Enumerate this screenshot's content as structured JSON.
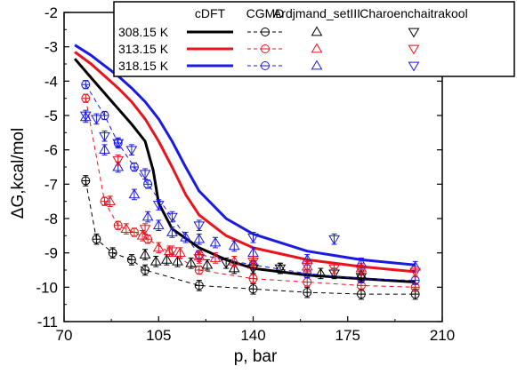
{
  "chart_data": {
    "type": "line",
    "xlabel": "p, bar",
    "ylabel": "ΔG,kcal/mol",
    "xlim": [
      70,
      210
    ],
    "ylim": [
      -11,
      -2
    ],
    "xticks": [
      70,
      105,
      140,
      175,
      210
    ],
    "yticks": [
      -11,
      -10,
      -9,
      -8,
      -7,
      -6,
      -5,
      -4,
      -3,
      -2
    ],
    "grid": false,
    "legend": {
      "position": "top-right",
      "headers": [
        "cDFT",
        "CGMD",
        "Ardjmand_setIII",
        "Charoenchaitrakool"
      ],
      "rows": [
        "308.15 K",
        "313.15 K",
        "318.15 K"
      ]
    },
    "colors": {
      "308.15 K": "#000000",
      "313.15 K": "#e8141b",
      "318.15 K": "#1a1ae0"
    },
    "series": [
      {
        "name": "cDFT",
        "temperature": "308.15 K",
        "style": "solid-line",
        "x": [
          74,
          80,
          85,
          90,
          95,
          100,
          103,
          105,
          110,
          120,
          130,
          140,
          160,
          180,
          200
        ],
        "y": [
          -3.35,
          -3.9,
          -4.35,
          -4.8,
          -5.25,
          -5.75,
          -6.6,
          -7.55,
          -8.3,
          -8.85,
          -9.2,
          -9.45,
          -9.65,
          -9.75,
          -9.85
        ]
      },
      {
        "name": "cDFT",
        "temperature": "313.15 K",
        "style": "solid-line",
        "x": [
          74,
          80,
          85,
          90,
          95,
          100,
          105,
          110,
          115,
          120,
          130,
          140,
          160,
          180,
          200
        ],
        "y": [
          -3.15,
          -3.5,
          -3.85,
          -4.2,
          -4.6,
          -5.1,
          -5.75,
          -6.5,
          -7.3,
          -7.9,
          -8.5,
          -8.85,
          -9.2,
          -9.4,
          -9.55
        ]
      },
      {
        "name": "cDFT",
        "temperature": "318.15 K",
        "style": "solid-line",
        "x": [
          74,
          80,
          85,
          90,
          95,
          100,
          105,
          110,
          115,
          120,
          130,
          140,
          160,
          180,
          200
        ],
        "y": [
          -2.95,
          -3.25,
          -3.55,
          -3.85,
          -4.2,
          -4.6,
          -5.1,
          -5.75,
          -6.5,
          -7.2,
          -8.0,
          -8.45,
          -8.95,
          -9.2,
          -9.35
        ]
      },
      {
        "name": "CGMD",
        "temperature": "308.15 K",
        "style": "dashed-circle",
        "x": [
          78,
          82,
          88,
          95,
          100,
          120,
          140,
          160,
          180,
          200
        ],
        "y": [
          -6.9,
          -8.6,
          -9.0,
          -9.2,
          -9.5,
          -9.95,
          -10.05,
          -10.15,
          -10.2,
          -10.2
        ],
        "err": 0.15
      },
      {
        "name": "CGMD",
        "temperature": "313.15 K",
        "style": "dashed-circle",
        "x": [
          78,
          85,
          90,
          96,
          101,
          120,
          140,
          160,
          180,
          200
        ],
        "y": [
          -4.5,
          -7.5,
          -8.2,
          -8.4,
          -8.6,
          -9.5,
          -9.75,
          -9.85,
          -9.95,
          -10.0
        ],
        "err": 0.12
      },
      {
        "name": "CGMD",
        "temperature": "318.15 K",
        "style": "dashed-circle",
        "x": [
          78,
          85,
          90,
          96,
          101,
          120,
          140,
          160,
          180,
          200
        ],
        "y": [
          -4.1,
          -5.0,
          -5.8,
          -6.5,
          -7.0,
          -9.05,
          -9.35,
          -9.6,
          -9.75,
          -9.8
        ],
        "err": 0.12
      },
      {
        "name": "Ardjmand_setIII",
        "temperature": "308.15 K",
        "style": "triangle-up",
        "x": [
          100,
          104,
          108,
          112,
          117,
          123,
          133,
          150,
          165,
          180
        ],
        "y": [
          -9.05,
          -9.25,
          -9.2,
          -9.25,
          -9.3,
          -9.35,
          -9.45,
          -9.45,
          -9.6,
          -9.65
        ],
        "err": 0.15
      },
      {
        "name": "Ardjmand_setIII",
        "temperature": "313.15 K",
        "style": "triangle-up",
        "x": [
          87,
          93,
          99,
          105,
          109,
          113,
          120,
          126,
          133,
          140,
          160,
          180
        ],
        "y": [
          -7.5,
          -8.3,
          -8.5,
          -8.85,
          -8.95,
          -9.0,
          -9.1,
          -9.15,
          -9.25,
          -9.35,
          -9.4,
          -9.45
        ],
        "err": 0.15
      },
      {
        "name": "Ardjmand_setIII",
        "temperature": "318.15 K",
        "style": "triangle-up",
        "x": [
          78,
          85,
          90,
          96,
          101,
          105,
          110,
          115,
          120,
          126,
          133,
          140,
          160,
          180,
          200
        ],
        "y": [
          -5.05,
          -6.0,
          -6.5,
          -7.3,
          -7.95,
          -8.2,
          -8.4,
          -8.55,
          -8.6,
          -8.7,
          -8.8,
          -9.0,
          -9.2,
          -9.3,
          -9.4
        ],
        "err": 0.15
      },
      {
        "name": "Charoenchaitrakool",
        "temperature": "308.15 K",
        "style": "triangle-down",
        "x": [
          130,
          140,
          150,
          170,
          180
        ],
        "y": [
          -9.3,
          -9.45,
          -9.45,
          -9.6,
          -9.7
        ],
        "err": 0.15
      },
      {
        "name": "Charoenchaitrakool",
        "temperature": "313.15 K",
        "style": "triangle-down",
        "x": [
          90,
          100,
          110,
          120,
          140,
          160,
          170,
          180,
          200
        ],
        "y": [
          -6.3,
          -8.3,
          -8.95,
          -9.15,
          -9.25,
          -9.4,
          -9.45,
          -9.5,
          -9.55
        ],
        "err": 0.15
      },
      {
        "name": "Charoenchaitrakool",
        "temperature": "318.15 K",
        "style": "triangle-down",
        "x": [
          78,
          82,
          85,
          90,
          95,
          100,
          105,
          110,
          120,
          140,
          170
        ],
        "y": [
          -5.0,
          -5.1,
          -5.6,
          -5.8,
          -6.0,
          -6.7,
          -7.6,
          -7.95,
          -8.2,
          -8.55,
          -8.6
        ],
        "err": 0.15
      }
    ]
  }
}
